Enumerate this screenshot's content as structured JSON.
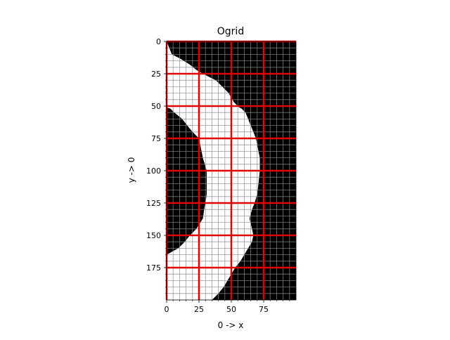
{
  "chart_data": {
    "type": "heatmap",
    "title": "Ogrid",
    "xlabel": "0 -> x",
    "ylabel": "y -> 0",
    "xlim": [
      0,
      100
    ],
    "ylim": [
      200,
      0
    ],
    "xticks": [
      0,
      25,
      50,
      75
    ],
    "yticks": [
      0,
      25,
      50,
      75,
      100,
      125,
      150,
      175
    ],
    "xtick_labels": [
      "0",
      "25",
      "50",
      "75"
    ],
    "ytick_labels": [
      "0",
      "25",
      "50",
      "75",
      "100",
      "125",
      "150",
      "175"
    ],
    "grid": {
      "major_spacing": 25,
      "major_color": "#e00000",
      "minor_spacing": 5,
      "minor_color": "#8c8c8c"
    },
    "colormap": {
      "0": "#000000",
      "1": "#ffffff"
    },
    "white_band_rows": [
      {
        "y": 0,
        "left": 0,
        "right": 0
      },
      {
        "y": 10,
        "left": 0,
        "right": 4
      },
      {
        "y": 13,
        "left": 0,
        "right": 10
      },
      {
        "y": 18,
        "left": 0,
        "right": 18
      },
      {
        "y": 22,
        "left": 0,
        "right": 23
      },
      {
        "y": 25,
        "left": 0,
        "right": 28
      },
      {
        "y": 30,
        "left": 0,
        "right": 38
      },
      {
        "y": 36,
        "left": 0,
        "right": 44
      },
      {
        "y": 40,
        "left": 0,
        "right": 48
      },
      {
        "y": 47,
        "left": 0,
        "right": 52
      },
      {
        "y": 51,
        "left": 0,
        "right": 56
      },
      {
        "y": 52,
        "left": 3,
        "right": 58
      },
      {
        "y": 55,
        "left": 6,
        "right": 61
      },
      {
        "y": 60,
        "left": 12,
        "right": 63
      },
      {
        "y": 65,
        "left": 16,
        "right": 65
      },
      {
        "y": 70,
        "left": 20,
        "right": 67
      },
      {
        "y": 75,
        "left": 25,
        "right": 69
      },
      {
        "y": 80,
        "left": 26,
        "right": 70
      },
      {
        "y": 90,
        "left": 28,
        "right": 72
      },
      {
        "y": 100,
        "left": 31,
        "right": 72
      },
      {
        "y": 110,
        "left": 31,
        "right": 71
      },
      {
        "y": 118,
        "left": 31,
        "right": 70
      },
      {
        "y": 125,
        "left": 30,
        "right": 68
      },
      {
        "y": 130,
        "left": 29,
        "right": 66
      },
      {
        "y": 137,
        "left": 28,
        "right": 64
      },
      {
        "y": 145,
        "left": 23,
        "right": 66
      },
      {
        "y": 150,
        "left": 18,
        "right": 67
      },
      {
        "y": 155,
        "left": 14,
        "right": 66
      },
      {
        "y": 160,
        "left": 9,
        "right": 63
      },
      {
        "y": 165,
        "left": 0,
        "right": 60
      },
      {
        "y": 170,
        "left": 0,
        "right": 57
      },
      {
        "y": 175,
        "left": 0,
        "right": 53
      },
      {
        "y": 180,
        "left": 0,
        "right": 50
      },
      {
        "y": 185,
        "left": 0,
        "right": 47
      },
      {
        "y": 190,
        "left": 0,
        "right": 44
      },
      {
        "y": 195,
        "left": 0,
        "right": 40
      },
      {
        "y": 200,
        "left": 0,
        "right": 35
      }
    ]
  }
}
